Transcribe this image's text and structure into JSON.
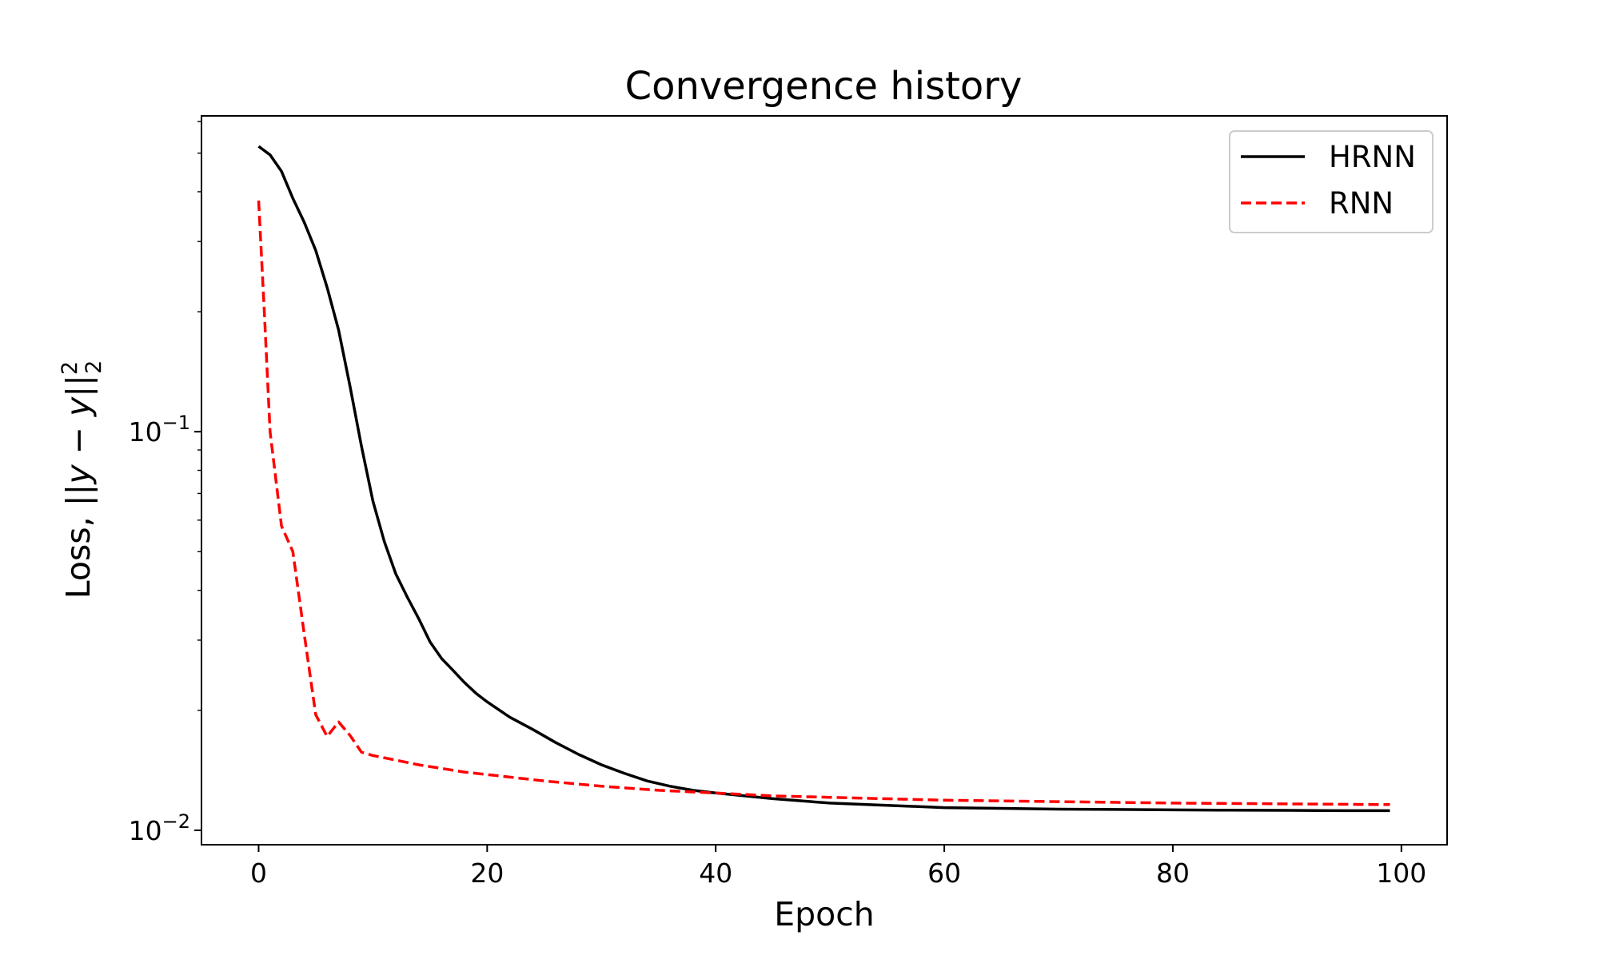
{
  "chart_data": {
    "type": "line",
    "title": "Convergence history",
    "xlabel": "Epoch",
    "ylabel": {
      "main": "Loss, ||",
      "y_dot": "y",
      "minus": " − ",
      "y_hat_dot": "y",
      "norm_close": "||",
      "subscript": "2",
      "superscript": "2"
    },
    "yscale": "log",
    "xlim": [
      -5,
      104
    ],
    "ylim": [
      0.0092,
      0.62
    ],
    "x_ticks": [
      0,
      20,
      40,
      60,
      80,
      100
    ],
    "x_tick_labels": [
      "0",
      "20",
      "40",
      "60",
      "80",
      "100"
    ],
    "y_ticks": [
      {
        "value": 0.1,
        "base": "10",
        "exp": "−1"
      },
      {
        "value": 0.01,
        "base": "10",
        "exp": "−2"
      }
    ],
    "grid": false,
    "legend_position": "upper right",
    "series": [
      {
        "name": "HRNN",
        "color": "#000000",
        "style": "solid",
        "x": [
          0,
          1,
          2,
          3,
          4,
          5,
          6,
          7,
          8,
          9,
          10,
          11,
          12,
          13,
          14,
          15,
          16,
          17,
          18,
          19,
          20,
          22,
          24,
          26,
          28,
          30,
          32,
          34,
          36,
          38,
          40,
          45,
          50,
          55,
          60,
          65,
          70,
          75,
          80,
          85,
          90,
          95,
          99
        ],
        "y": [
          0.52,
          0.495,
          0.45,
          0.385,
          0.335,
          0.285,
          0.23,
          0.18,
          0.13,
          0.092,
          0.067,
          0.053,
          0.044,
          0.0385,
          0.034,
          0.0297,
          0.027,
          0.0252,
          0.0235,
          0.0221,
          0.021,
          0.0192,
          0.0179,
          0.0166,
          0.0155,
          0.0146,
          0.0139,
          0.0133,
          0.0129,
          0.0126,
          0.0124,
          0.012,
          0.0117,
          0.01155,
          0.0114,
          0.01135,
          0.0113,
          0.01128,
          0.01125,
          0.01123,
          0.01122,
          0.0112,
          0.0112
        ]
      },
      {
        "name": "RNN",
        "color": "#ff0000",
        "style": "dashed",
        "x": [
          0,
          0.5,
          1,
          2,
          3,
          4,
          5,
          6,
          7,
          8,
          9,
          10,
          12,
          14,
          16,
          18,
          20,
          25,
          30,
          35,
          40,
          45,
          50,
          60,
          70,
          80,
          90,
          99
        ],
        "y": [
          0.38,
          0.2,
          0.1,
          0.058,
          0.05,
          0.031,
          0.0195,
          0.0172,
          0.0187,
          0.0173,
          0.0157,
          0.0154,
          0.015,
          0.0146,
          0.0143,
          0.014,
          0.0138,
          0.0133,
          0.0129,
          0.0126,
          0.0124,
          0.0122,
          0.0121,
          0.0119,
          0.0118,
          0.0117,
          0.01165,
          0.0116
        ]
      }
    ]
  }
}
